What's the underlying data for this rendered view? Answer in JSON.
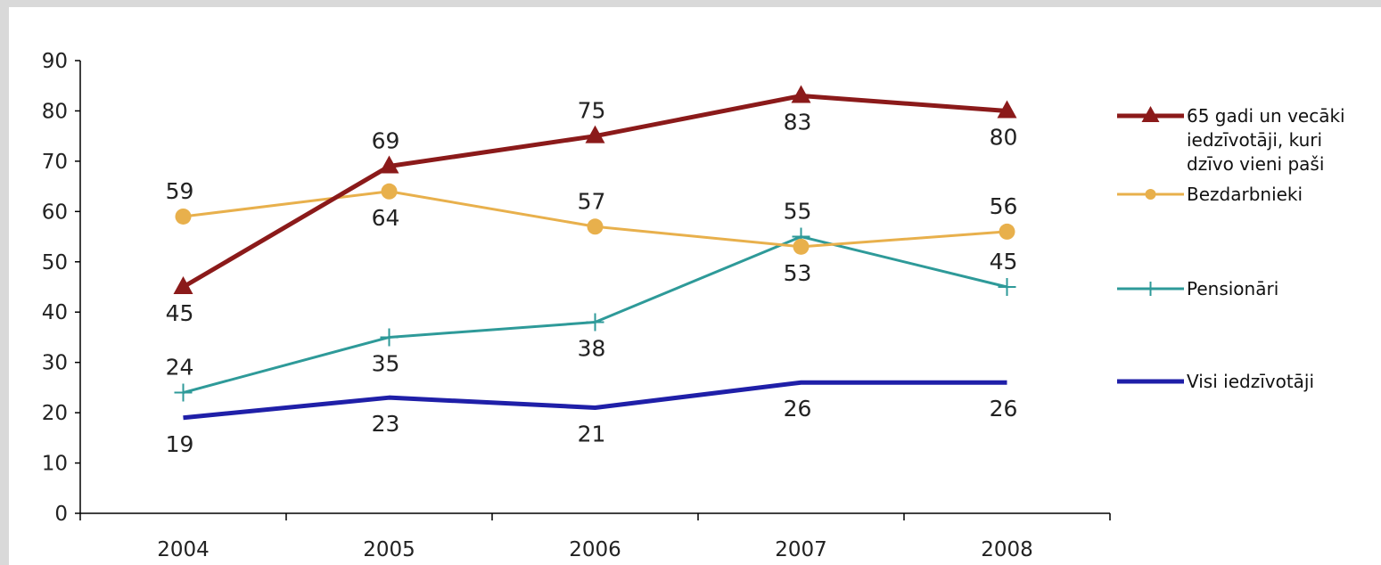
{
  "chart_data": {
    "type": "line",
    "title": "",
    "xlabel": "",
    "ylabel": "",
    "categories": [
      "2004",
      "2005",
      "2006",
      "2007",
      "2008"
    ],
    "ylim": [
      0,
      90
    ],
    "yticks": [
      "0",
      "10",
      "20",
      "30",
      "40",
      "50",
      "60",
      "70",
      "80",
      "90"
    ],
    "grid": false,
    "legend_position": "right",
    "series": [
      {
        "name_lines": [
          "65 gadi un vecāki",
          "iedzīvotāji, kuri",
          "dzīvo vieni paši"
        ],
        "values": [
          45,
          69,
          75,
          83,
          80
        ],
        "labels": [
          "45",
          "69",
          "75",
          "83",
          "80"
        ],
        "label_pos": [
          "below",
          "above",
          "above",
          "below",
          "below"
        ],
        "color": "#8b1a1a",
        "marker": "triangle"
      },
      {
        "name_lines": [
          "Bezdarbnieki"
        ],
        "values": [
          59,
          64,
          57,
          53,
          56
        ],
        "labels": [
          "59",
          "64",
          "57",
          "53",
          "56"
        ],
        "label_pos": [
          "above",
          "below",
          "above",
          "below",
          "above"
        ],
        "color": "#e8b04c",
        "marker": "circle"
      },
      {
        "name_lines": [
          "Pensionāri"
        ],
        "values": [
          24,
          35,
          38,
          55,
          45
        ],
        "labels": [
          "24",
          "35",
          "38",
          "55",
          "45"
        ],
        "label_pos": [
          "above",
          "below",
          "below",
          "above",
          "above"
        ],
        "color": "#2e9a99",
        "marker": "plus"
      },
      {
        "name_lines": [
          "Visi iedzīvotāji"
        ],
        "values": [
          19,
          23,
          21,
          26,
          26
        ],
        "labels": [
          "19",
          "23",
          "21",
          "26",
          "26"
        ],
        "label_pos": [
          "below",
          "below",
          "below",
          "below",
          "below"
        ],
        "color": "#1f1fa8",
        "marker": "none"
      }
    ]
  }
}
